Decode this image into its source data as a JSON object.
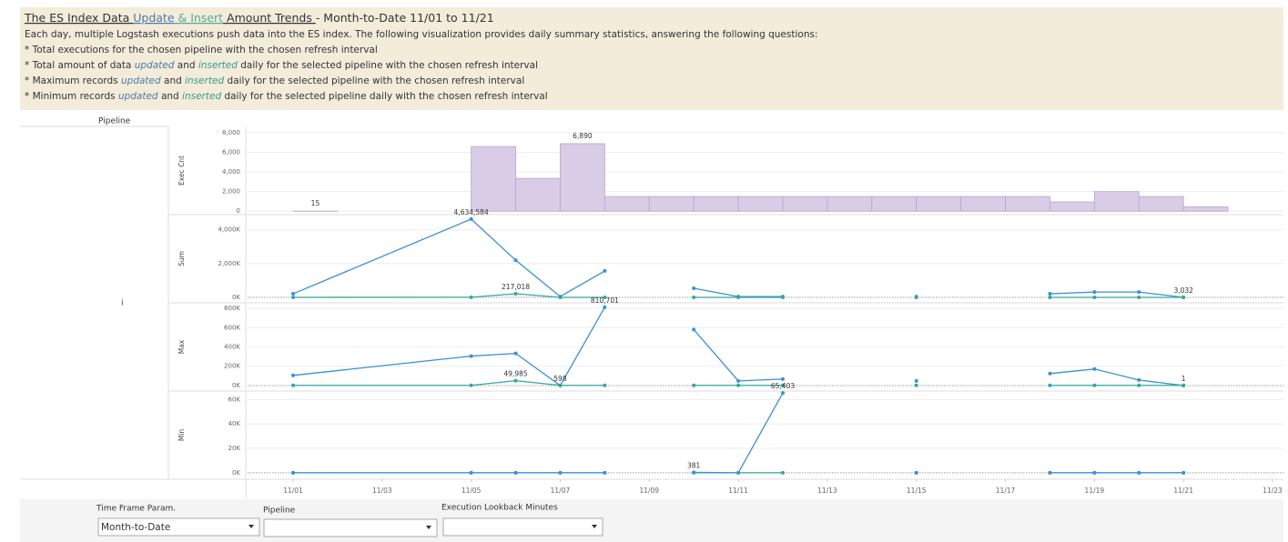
{
  "header": {
    "title": [
      {
        "text": "The ES Index Data "
      },
      {
        "text": "Update",
        "color": "#4e79a7"
      },
      {
        "text": " & Insert",
        "color": "#59a89a"
      },
      {
        "text": " Amount Trends "
      }
    ],
    "subtitle": "- Month-to-Date 11/01 to 11/21",
    "lines": [
      [
        {
          "text": "Each day, multiple Logstash executions push data into the ES index. The following visualization provides daily summary statistics, answering the following questions:"
        }
      ],
      [
        {
          "text": "* Total executions for the chosen pipeline with the chosen refresh interval"
        }
      ],
      [
        {
          "text": "* Total amount of data "
        },
        {
          "text": "updated",
          "color": "#4e79a7"
        },
        {
          "text": " and "
        },
        {
          "text": "inserted",
          "color": "#3a9a87"
        },
        {
          "text": " daily for the selected pipeline with the chosen refresh interval"
        }
      ],
      [
        {
          "text": "* Maximum records "
        },
        {
          "text": "updated",
          "color": "#4e79a7"
        },
        {
          "text": " and "
        },
        {
          "text": "inserted",
          "color": "#3a9a87"
        },
        {
          "text": " daily for the selected pipeline with the chosen refresh interval"
        }
      ],
      [
        {
          "text": "* Minimum records "
        },
        {
          "text": "updated",
          "color": "#4e79a7"
        },
        {
          "text": " and "
        },
        {
          "text": "inserted",
          "color": "#3a9a87"
        },
        {
          "text": " daily for the selected pipeline  daily with the chosen refresh interval"
        }
      ]
    ]
  },
  "row_header": "Pipeline",
  "row_label": "i",
  "chart_data": [
    {
      "type": "bar",
      "y_label": "Exec Cnt",
      "color": "#d8cce6",
      "x": [
        "11/01",
        "11/05",
        "11/06",
        "11/07",
        "11/08",
        "11/09",
        "11/10",
        "11/11",
        "11/12",
        "11/13",
        "11/14",
        "11/15",
        "11/16",
        "11/17",
        "11/18",
        "11/19",
        "11/20",
        "11/21"
      ],
      "values": [
        15,
        6600,
        3350,
        6890,
        1500,
        1500,
        1500,
        1500,
        1500,
        1500,
        1500,
        1500,
        1500,
        1500,
        950,
        2000,
        1500,
        450
      ],
      "value_labels": [
        "15",
        null,
        null,
        "6,890",
        null,
        null,
        null,
        null,
        null,
        null,
        null,
        null,
        null,
        null,
        null,
        null,
        null,
        null
      ],
      "ylim": [
        -350,
        8650
      ],
      "yticks": [
        0,
        {
          "value": 2000,
          "label": "2,000"
        },
        {
          "value": 4000,
          "label": "4,000"
        },
        {
          "value": 6000,
          "label": "6,000"
        },
        {
          "value": 8000,
          "label": "8,000"
        }
      ],
      "grid": true
    },
    {
      "type": "line",
      "y_label": "Sum",
      "x": [
        "11/01",
        "11/05",
        "11/06",
        "11/07",
        "11/08",
        "11/09",
        "11/10",
        "11/11",
        "11/12",
        "11/13",
        "11/15",
        "11/16",
        "11/18",
        "11/19",
        "11/20",
        "11/21"
      ],
      "series": [
        {
          "color": "#3b8fd9",
          "values": [
            216000,
            4634584,
            2200000,
            50000,
            1570000,
            null,
            540000,
            50000,
            50000,
            null,
            50000,
            null,
            216000,
            320000,
            320000,
            3032
          ],
          "value_labels": [
            null,
            "4,634,584",
            null,
            null,
            null,
            null,
            null,
            null,
            null,
            null,
            null,
            null,
            null,
            null,
            null,
            "3,032"
          ]
        },
        {
          "color": "#34a89a",
          "values": [
            3000,
            10000,
            217018,
            3000,
            3000,
            null,
            3000,
            3000,
            3000,
            null,
            3000,
            null,
            3000,
            3000,
            3000,
            3000
          ],
          "value_labels": [
            null,
            null,
            "217,018",
            null,
            null,
            null,
            null,
            null,
            null,
            null,
            null,
            null,
            null,
            null,
            null,
            null
          ]
        }
      ],
      "ylim": [
        -320000,
        4900000
      ],
      "yticks": [
        {
          "value": 0,
          "label": "0K"
        },
        {
          "value": 2000000,
          "label": "2,000K"
        },
        {
          "value": 4000000,
          "label": "4,000K"
        }
      ],
      "grid": true
    },
    {
      "type": "line",
      "y_label": "Max",
      "x": [
        "11/01",
        "11/05",
        "11/06",
        "11/07",
        "11/08",
        "11/09",
        "11/10",
        "11/11",
        "11/12",
        "11/13",
        "11/15",
        "11/16",
        "11/18",
        "11/19",
        "11/20",
        "11/21"
      ],
      "series": [
        {
          "color": "#3b8fd9",
          "values": [
            105000,
            305000,
            333000,
            598,
            810701,
            null,
            580000,
            48000,
            67000,
            null,
            48000,
            null,
            124000,
            171000,
            57000,
            1
          ],
          "value_labels": [
            null,
            null,
            null,
            "598",
            "810,701",
            null,
            null,
            null,
            null,
            null,
            null,
            null,
            null,
            null,
            null,
            "1"
          ]
        },
        {
          "color": "#34a89a",
          "values": [
            2000,
            2000,
            49985,
            2000,
            2000,
            null,
            2000,
            2000,
            2000,
            null,
            2000,
            null,
            2000,
            2000,
            2000,
            2000
          ],
          "value_labels": [
            null,
            null,
            "49,985",
            null,
            null,
            null,
            null,
            null,
            null,
            null,
            null,
            null,
            null,
            null,
            null,
            null
          ]
        }
      ],
      "ylim": [
        -57000,
        857000
      ],
      "yticks": [
        {
          "value": 0,
          "label": "0K"
        },
        {
          "value": 200000,
          "label": "200K"
        },
        {
          "value": 400000,
          "label": "400K"
        },
        {
          "value": 600000,
          "label": "600K"
        },
        {
          "value": 800000,
          "label": "800K"
        }
      ],
      "grid": true
    },
    {
      "type": "line",
      "y_label": "Min",
      "x": [
        "11/01",
        "11/05",
        "11/06",
        "11/07",
        "11/08",
        "11/09",
        "11/10",
        "11/11",
        "11/12",
        "11/13",
        "11/15",
        "11/16",
        "11/18",
        "11/19",
        "11/20",
        "11/21"
      ],
      "series": [
        {
          "color": "#34a89a",
          "values": [
            1,
            1,
            1,
            1,
            1,
            null,
            1,
            1,
            1,
            null,
            1,
            null,
            1,
            1,
            1,
            1
          ]
        },
        {
          "color": "#3b8fd9",
          "values": [
            1,
            1,
            1,
            1,
            1,
            null,
            381,
            1,
            65403,
            null,
            1,
            null,
            1,
            1,
            1,
            1
          ],
          "value_labels": [
            null,
            null,
            null,
            null,
            null,
            null,
            "381",
            null,
            "65,403",
            null,
            null,
            null,
            null,
            null,
            null,
            null
          ]
        }
      ],
      "ylim": [
        -5300,
        67000
      ],
      "yticks": [
        {
          "value": 0,
          "label": "0K"
        },
        {
          "value": 20000,
          "label": "20K"
        },
        {
          "value": 40000,
          "label": "40K"
        },
        {
          "value": 60000,
          "label": "60K"
        }
      ],
      "grid": true,
      "xlim": [
        "11/01",
        "11/23"
      ],
      "xticks": [
        "11/01",
        "11/03",
        "11/05",
        "11/07",
        "11/09",
        "11/11",
        "11/13",
        "11/15",
        "11/17",
        "11/19",
        "11/21",
        "11/23"
      ]
    }
  ],
  "controls": [
    {
      "label": "Time Frame Param.",
      "value": "Month-to-Date"
    },
    {
      "label": "Pipeline",
      "value": ""
    },
    {
      "label": "Execution Lookback Minutes",
      "value": ""
    }
  ]
}
